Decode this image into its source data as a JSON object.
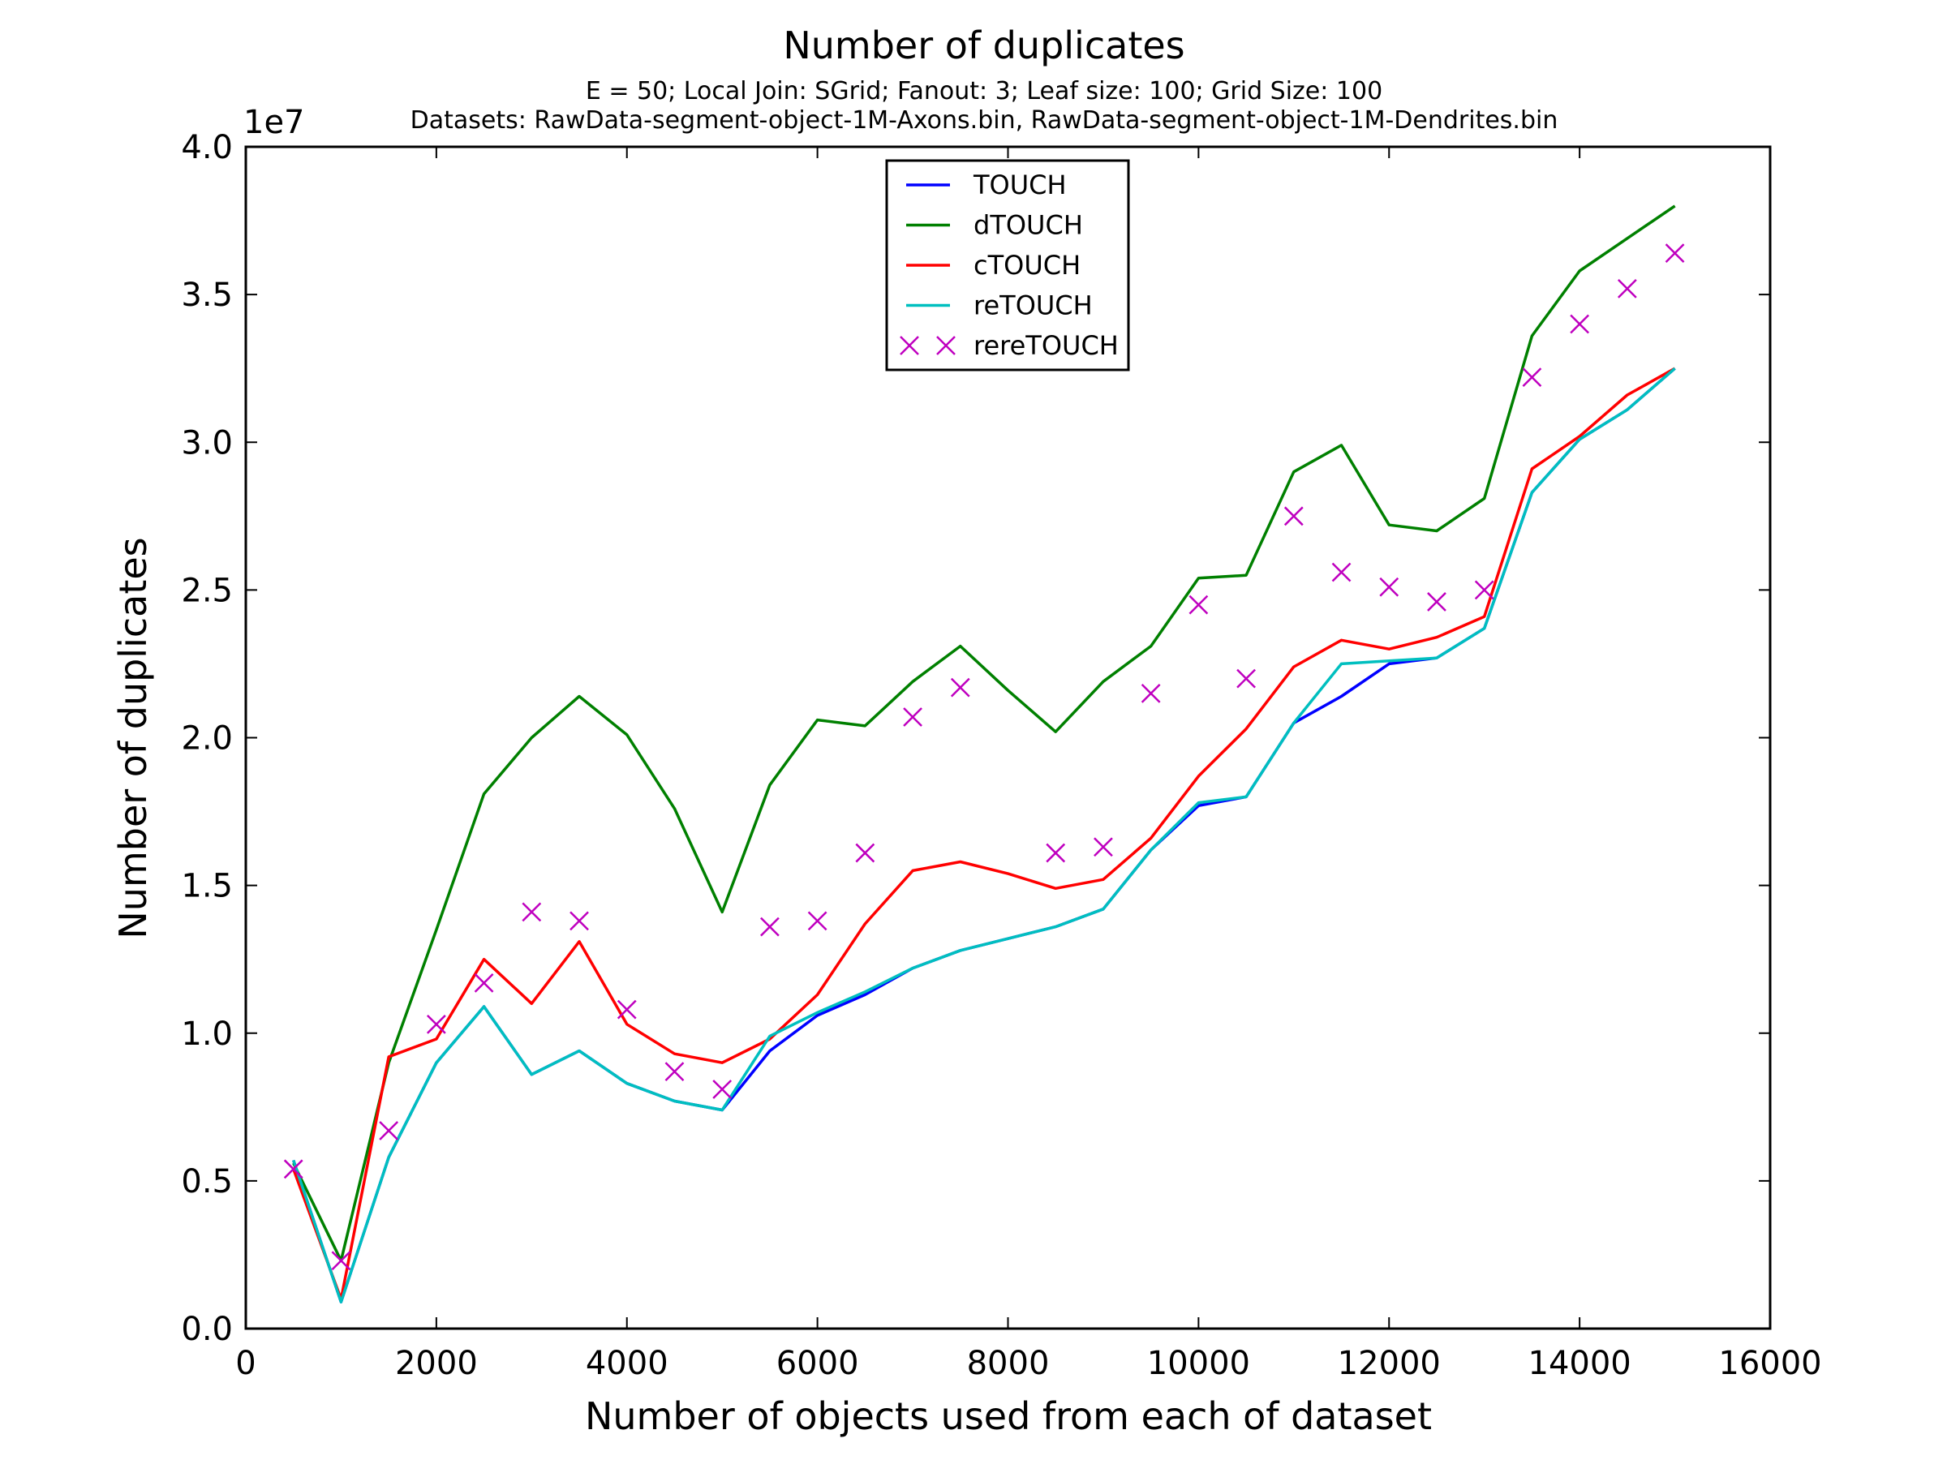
{
  "chart_data": {
    "type": "line",
    "title": "Number of duplicates",
    "subtitle_lines": [
      "E = 50; Local Join: SGrid; Fanout: 3; Leaf size: 100; Grid Size: 100",
      "Datasets: RawData-segment-object-1M-Axons.bin, RawData-segment-object-1M-Dendrites.bin"
    ],
    "xlabel": "Number of objects used from each of dataset",
    "ylabel": "Number of duplicates",
    "y_scale_label": "1e7",
    "xlim": [
      0,
      16000
    ],
    "ylim": [
      0,
      4.0
    ],
    "x_ticks": [
      0,
      2000,
      4000,
      6000,
      8000,
      10000,
      12000,
      14000,
      16000
    ],
    "x_tick_labels": [
      "0",
      "2000",
      "4000",
      "6000",
      "8000",
      "10000",
      "12000",
      "14000",
      "16000"
    ],
    "y_ticks": [
      0,
      0.5,
      1.0,
      1.5,
      2.0,
      2.5,
      3.0,
      3.5,
      4.0
    ],
    "y_tick_labels": [
      "0.0",
      "0.5",
      "1.0",
      "1.5",
      "2.0",
      "2.5",
      "3.0",
      "3.5",
      "4.0"
    ],
    "grid": false,
    "legend_position": "top-center",
    "x": [
      500,
      1000,
      1500,
      2000,
      2500,
      3000,
      3500,
      4000,
      4500,
      5000,
      5500,
      6000,
      6500,
      7000,
      7500,
      8000,
      8500,
      9000,
      9500,
      10000,
      10500,
      11000,
      11500,
      12000,
      12500,
      13000,
      13500,
      14000,
      14500,
      15000
    ],
    "series": [
      {
        "name": "TOUCH",
        "style": "line",
        "color": "#0000ff",
        "values": [
          0.57,
          0.09,
          0.58,
          0.9,
          1.09,
          0.86,
          0.94,
          0.83,
          0.77,
          0.74,
          0.94,
          1.06,
          1.13,
          1.22,
          1.28,
          1.32,
          1.36,
          1.42,
          1.62,
          1.77,
          1.8,
          2.05,
          2.14,
          2.25,
          2.27,
          2.37,
          2.83,
          3.01,
          3.11,
          3.25
        ]
      },
      {
        "name": "dTOUCH",
        "style": "line",
        "color": "#008000",
        "values": [
          0.56,
          0.23,
          0.9,
          1.35,
          1.81,
          2.0,
          2.14,
          2.01,
          1.76,
          1.41,
          1.84,
          2.06,
          2.04,
          2.19,
          2.31,
          2.16,
          2.02,
          2.19,
          2.31,
          2.54,
          2.55,
          2.9,
          2.99,
          2.72,
          2.7,
          2.81,
          3.36,
          3.58,
          3.69,
          3.8
        ]
      },
      {
        "name": "cTOUCH",
        "style": "line",
        "color": "#ff0000",
        "values": [
          0.54,
          0.1,
          0.92,
          0.98,
          1.25,
          1.1,
          1.31,
          1.03,
          0.93,
          0.9,
          0.98,
          1.13,
          1.37,
          1.55,
          1.58,
          1.54,
          1.49,
          1.52,
          1.66,
          1.87,
          2.03,
          2.24,
          2.33,
          2.3,
          2.34,
          2.41,
          2.91,
          3.02,
          3.16,
          3.25
        ]
      },
      {
        "name": "reTOUCH",
        "style": "line",
        "color": "#00bfbf",
        "values": [
          0.57,
          0.09,
          0.58,
          0.9,
          1.09,
          0.86,
          0.94,
          0.83,
          0.77,
          0.74,
          0.99,
          1.07,
          1.14,
          1.22,
          1.28,
          1.32,
          1.36,
          1.42,
          1.62,
          1.78,
          1.8,
          2.05,
          2.25,
          2.26,
          2.27,
          2.37,
          2.83,
          3.01,
          3.11,
          3.25
        ]
      },
      {
        "name": "rereTOUCH",
        "style": "marker-x",
        "color": "#bf00bf",
        "values": [
          0.54,
          0.23,
          0.67,
          1.03,
          1.17,
          1.41,
          1.38,
          1.08,
          0.87,
          0.81,
          1.36,
          1.38,
          1.61,
          2.07,
          2.17,
          null,
          1.61,
          1.63,
          2.15,
          2.45,
          2.2,
          2.75,
          2.56,
          2.51,
          2.46,
          2.5,
          3.22,
          3.4,
          3.52,
          3.64
        ]
      }
    ]
  }
}
